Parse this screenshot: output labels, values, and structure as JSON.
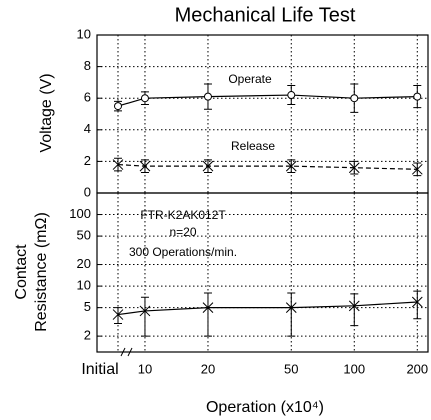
{
  "chart_data": [
    {
      "type": "line",
      "title": "Mechanical Life Test",
      "ylabel": "Voltage (V)",
      "x": [
        "Initial",
        10,
        20,
        50,
        100,
        200
      ],
      "xlim": [
        5.9,
        225
      ],
      "xscale": "log",
      "ylim": [
        0,
        10
      ],
      "yticks": [
        0,
        2,
        4,
        6,
        8,
        10
      ],
      "grid": true,
      "series": [
        {
          "name": "Operate",
          "color": "#000000",
          "marker": "circle",
          "linestyle": "solid",
          "values": [
            5.5,
            6.0,
            6.1,
            6.2,
            6.0,
            6.1
          ],
          "errors": [
            0.3,
            0.4,
            0.8,
            0.6,
            0.9,
            0.7
          ]
        },
        {
          "name": "Release",
          "color": "#000000",
          "marker": "x",
          "linestyle": "dashed",
          "values": [
            1.8,
            1.7,
            1.7,
            1.7,
            1.6,
            1.5
          ],
          "errors": [
            0.4,
            0.4,
            0.4,
            0.4,
            0.4,
            0.4
          ]
        }
      ]
    },
    {
      "type": "line",
      "ylabel": [
        "Contact",
        "Resistance (mΩ)"
      ],
      "xlabel": "Operation (x10⁴)",
      "x": [
        "Initial",
        10,
        20,
        50,
        100,
        200
      ],
      "xlim": [
        5.9,
        225
      ],
      "xscale": "log",
      "ylim": [
        1.2,
        200
      ],
      "yscale": "log",
      "yticks": [
        2,
        5,
        10,
        20,
        50,
        100
      ],
      "grid": true,
      "annotations": [
        "FTR-K2AK012T",
        "n=20",
        "300 Operations/min."
      ],
      "series": [
        {
          "color": "#000000",
          "marker": "x",
          "linestyle": "solid",
          "values": [
            4,
            4.5,
            5,
            5,
            5.3,
            6
          ],
          "errors": [
            1,
            2.5,
            3,
            3,
            2.5,
            2.5
          ]
        }
      ]
    }
  ]
}
